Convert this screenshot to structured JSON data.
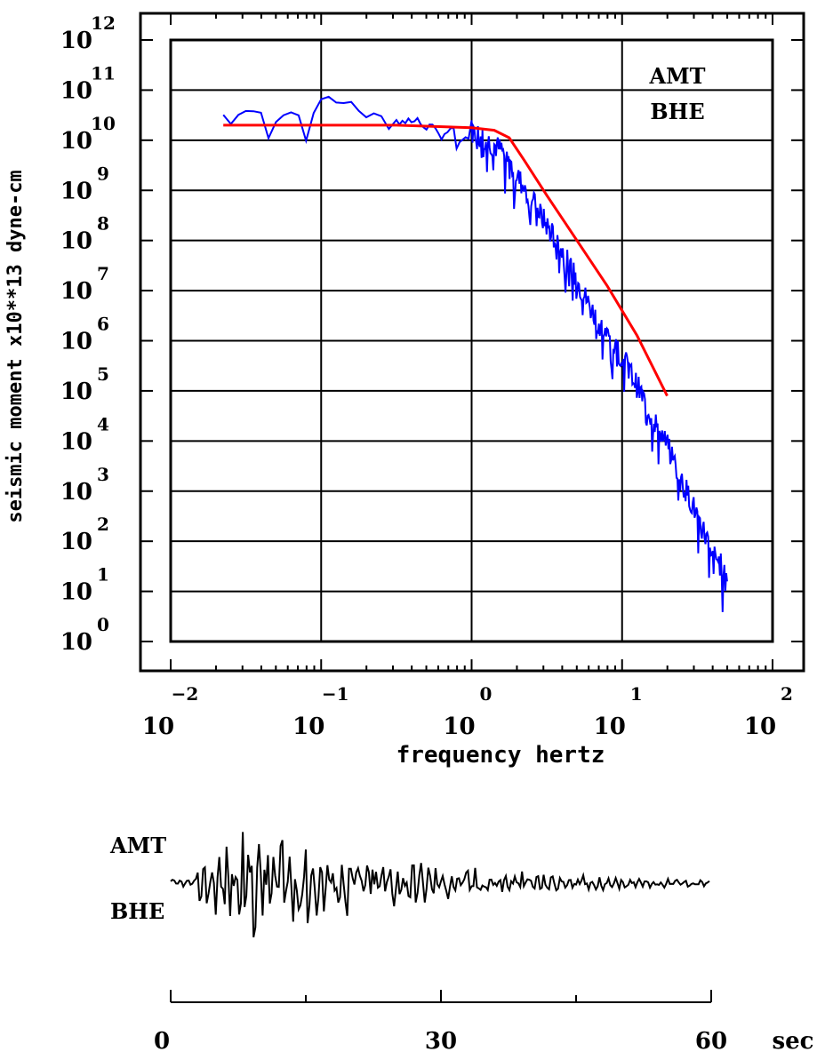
{
  "chart_data": {
    "type": "line",
    "xscale": "log",
    "yscale": "log",
    "xlabel": "frequency hertz",
    "ylabel": "seismic moment x10**13 dyne-cm",
    "xlim_exponent": [
      -2,
      2
    ],
    "ylim_exponent": [
      0,
      12
    ],
    "x_tick_exponents": [
      "-2",
      "-1",
      "0",
      "1",
      "2"
    ],
    "x_tick_base": "10",
    "y_tick_exponents": [
      "0",
      "1",
      "2",
      "3",
      "4",
      "5",
      "6",
      "7",
      "8",
      "9",
      "10",
      "11",
      "12"
    ],
    "y_tick_base": "10",
    "grid": true,
    "annotation": [
      "AMT",
      "BHE"
    ],
    "series": [
      {
        "color": "#0000ff",
        "note": "observed spectrum (log10 freq, log10 moment)",
        "x_log": [
          -1.65,
          -1.45,
          -1.3,
          -1.2,
          -1.1,
          -1.0,
          -0.95,
          -0.88,
          -0.8,
          -0.75,
          -0.7,
          -0.62,
          -0.55,
          -0.48,
          -0.4,
          -0.3,
          -0.22,
          -0.15,
          -0.05,
          0.0,
          0.1,
          0.2,
          0.3,
          0.4,
          0.5,
          0.6,
          0.7,
          0.8,
          0.9,
          1.0,
          1.1,
          1.2,
          1.3,
          1.4,
          1.5,
          1.6,
          1.7
        ],
        "y_log": [
          10.5,
          10.6,
          10.4,
          10.6,
          10.3,
          10.8,
          10.9,
          10.7,
          10.8,
          10.6,
          10.5,
          10.6,
          10.2,
          10.4,
          10.4,
          10.3,
          10.1,
          10.2,
          10.0,
          10.2,
          10.0,
          9.8,
          9.3,
          8.8,
          8.3,
          7.8,
          7.2,
          6.6,
          6.1,
          5.7,
          5.1,
          4.5,
          3.9,
          3.2,
          2.5,
          1.8,
          1.3
        ]
      },
      {
        "color": "#ff0000",
        "note": "model fit (log10 freq, log10 moment)",
        "x_log": [
          -1.65,
          -1.0,
          -0.5,
          0.0,
          0.15,
          0.25,
          0.35,
          0.5,
          0.7,
          0.9,
          1.0,
          1.1,
          1.2,
          1.3
        ],
        "y_log": [
          10.3,
          10.3,
          10.3,
          10.25,
          10.2,
          10.05,
          9.6,
          8.9,
          8.0,
          7.1,
          6.6,
          6.1,
          5.5,
          4.9
        ]
      }
    ]
  },
  "seismogram": {
    "station_top": "AMT",
    "station_bottom": "BHE",
    "time_ticks": [
      "0",
      "30",
      "60"
    ],
    "time_unit": "sec",
    "time_range": [
      0,
      60
    ]
  }
}
